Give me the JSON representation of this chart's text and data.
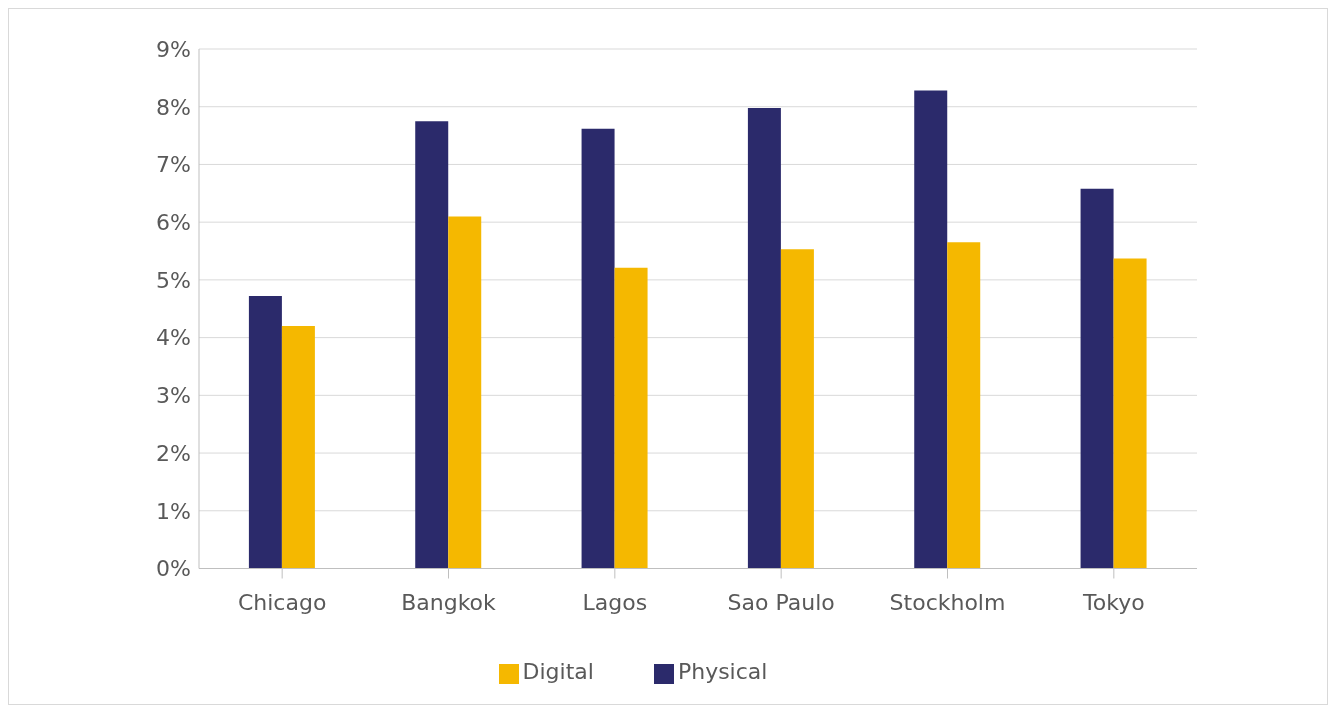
{
  "chart_data": {
    "type": "bar",
    "categories": [
      "Chicago",
      "Bangkok",
      "Lagos",
      "Sao Paulo",
      "Stockholm",
      "Tokyo"
    ],
    "series": [
      {
        "name": "Physical",
        "color": "#2b2a6b",
        "values": [
          4.72,
          7.75,
          7.62,
          7.98,
          8.28,
          6.58
        ]
      },
      {
        "name": "Digital",
        "color": "#f5b800",
        "values": [
          4.2,
          6.1,
          5.21,
          5.53,
          5.65,
          5.37
        ]
      }
    ],
    "ylim": [
      0,
      9
    ],
    "yticks": [
      {
        "value": 0,
        "label": "0%"
      },
      {
        "value": 1,
        "label": "1%"
      },
      {
        "value": 2,
        "label": "2%"
      },
      {
        "value": 3,
        "label": "3%"
      },
      {
        "value": 4,
        "label": "4%"
      },
      {
        "value": 5,
        "label": "5%"
      },
      {
        "value": 6,
        "label": "6%"
      },
      {
        "value": 7,
        "label": "7%"
      },
      {
        "value": 8,
        "label": "8%"
      },
      {
        "value": 9,
        "label": "9%"
      }
    ],
    "grid": "y",
    "legend": "bottom"
  }
}
